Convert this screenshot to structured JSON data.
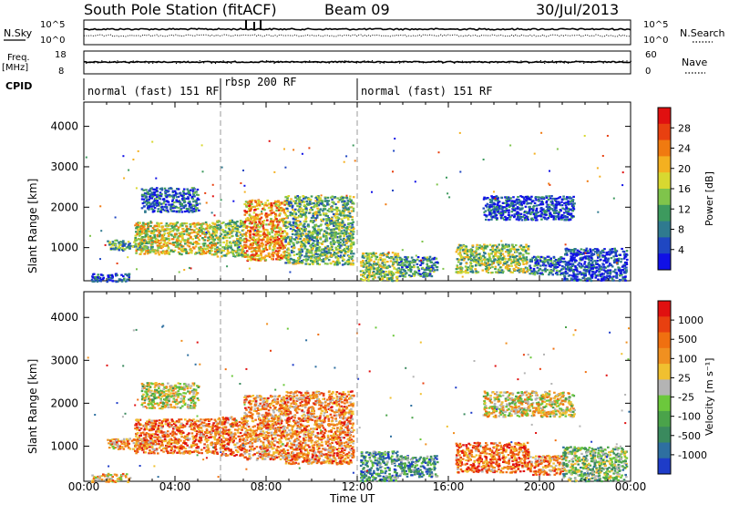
{
  "header": {
    "station": "South Pole Station (fitACF)",
    "beam": "Beam 09",
    "date": "30/Jul/2013"
  },
  "top_panels": {
    "nsky_label": "N.Sky",
    "nsearch_label": "N.Search",
    "freq_label_1": "Freq.",
    "freq_label_2": "[MHz]",
    "nave_label": "Nave",
    "cpid_label": "CPID",
    "noise_ticks_left": [
      "10^5",
      "10^0"
    ],
    "noise_ticks_right": [
      "10^5",
      "10^0"
    ],
    "freq_ticks": [
      "18",
      "8"
    ],
    "nave_ticks": [
      "60",
      "0"
    ]
  },
  "cpid_segments": [
    {
      "label": "normal (fast) 151 RF",
      "start_h": 0,
      "end_h": 6
    },
    {
      "label": "rbsp 200 RF",
      "start_h": 6,
      "end_h": 12
    },
    {
      "label": "normal (fast) 151 RF",
      "start_h": 12,
      "end_h": 24
    }
  ],
  "chart_data": [
    {
      "type": "heatmap",
      "name": "power",
      "ylabel": "Slant Range [km]",
      "xlabel": "Time UT",
      "xlim": [
        0,
        24
      ],
      "ylim": [
        180,
        4600
      ],
      "x_ticks": [
        "00:00",
        "04:00",
        "08:00",
        "12:00",
        "16:00",
        "20:00",
        "00:00"
      ],
      "y_ticks": [
        1000,
        2000,
        3000,
        4000
      ],
      "colorbar": {
        "label": "Power [dB]",
        "ticks": [
          "28",
          "24",
          "20",
          "16",
          "12",
          "8",
          "4"
        ],
        "colors": [
          "#1010e6",
          "#1f47c2",
          "#2f7a8f",
          "#3d9a5e",
          "#7fc44b",
          "#d8d830",
          "#f4b020",
          "#f07a10",
          "#e84010",
          "#e01010"
        ]
      },
      "regions": [
        {
          "t0": 0.3,
          "t1": 2.0,
          "r0": 180,
          "r1": 380,
          "level": 0.15
        },
        {
          "t0": 1.0,
          "t1": 3.0,
          "r0": 950,
          "r1": 1200,
          "level": 0.35
        },
        {
          "t0": 2.2,
          "t1": 5.8,
          "r0": 850,
          "r1": 1650,
          "level": 0.55
        },
        {
          "t0": 2.5,
          "t1": 5.0,
          "r0": 1900,
          "r1": 2500,
          "level": 0.2
        },
        {
          "t0": 5.8,
          "t1": 7.0,
          "r0": 800,
          "r1": 1700,
          "level": 0.45
        },
        {
          "t0": 7.0,
          "t1": 8.8,
          "r0": 700,
          "r1": 2200,
          "level": 0.7
        },
        {
          "t0": 8.8,
          "t1": 11.8,
          "r0": 600,
          "r1": 2300,
          "level": 0.4
        },
        {
          "t0": 12.1,
          "t1": 13.8,
          "r0": 200,
          "r1": 900,
          "level": 0.45
        },
        {
          "t0": 13.8,
          "t1": 15.5,
          "r0": 300,
          "r1": 800,
          "level": 0.3
        },
        {
          "t0": 16.3,
          "t1": 19.5,
          "r0": 400,
          "r1": 1100,
          "level": 0.45
        },
        {
          "t0": 19.5,
          "t1": 21.0,
          "r0": 350,
          "r1": 800,
          "level": 0.25
        },
        {
          "t0": 21.0,
          "t1": 23.8,
          "r0": 200,
          "r1": 1000,
          "level": 0.12
        },
        {
          "t0": 17.5,
          "t1": 21.5,
          "r0": 1700,
          "r1": 2300,
          "level": 0.15
        }
      ]
    },
    {
      "type": "heatmap",
      "name": "velocity",
      "ylabel": "Slant Range [km]",
      "xlabel": "Time UT",
      "xlim": [
        0,
        24
      ],
      "ylim": [
        180,
        4600
      ],
      "x_ticks": [
        "00:00",
        "04:00",
        "08:00",
        "12:00",
        "16:00",
        "20:00",
        "00:00"
      ],
      "y_ticks": [
        1000,
        2000,
        3000,
        4000
      ],
      "colorbar": {
        "label": "Velocity [m s⁻¹]",
        "ticks": [
          "1000",
          "500",
          "100",
          "25",
          "-25",
          "-100",
          "-500",
          "-1000"
        ],
        "colors": [
          "#1e3cc8",
          "#2e6fa0",
          "#3a8a5e",
          "#4aa34a",
          "#6cc83c",
          "#b4b4b4",
          "#f0c030",
          "#f09020",
          "#f07010",
          "#e84010",
          "#e01010"
        ]
      },
      "regions": [
        {
          "t0": 0.3,
          "t1": 2.0,
          "r0": 180,
          "r1": 380,
          "level": 0.6
        },
        {
          "t0": 1.0,
          "t1": 3.0,
          "r0": 950,
          "r1": 1200,
          "level": 0.65
        },
        {
          "t0": 2.2,
          "t1": 5.8,
          "r0": 850,
          "r1": 1650,
          "level": 0.75
        },
        {
          "t0": 2.5,
          "t1": 5.0,
          "r0": 1900,
          "r1": 2500,
          "level": 0.5
        },
        {
          "t0": 5.8,
          "t1": 7.0,
          "r0": 800,
          "r1": 1700,
          "level": 0.75
        },
        {
          "t0": 7.0,
          "t1": 8.8,
          "r0": 700,
          "r1": 2200,
          "level": 0.7
        },
        {
          "t0": 8.8,
          "t1": 11.8,
          "r0": 600,
          "r1": 2300,
          "level": 0.72
        },
        {
          "t0": 12.1,
          "t1": 13.8,
          "r0": 200,
          "r1": 900,
          "level": 0.25
        },
        {
          "t0": 13.8,
          "t1": 15.5,
          "r0": 300,
          "r1": 800,
          "level": 0.28
        },
        {
          "t0": 16.3,
          "t1": 19.5,
          "r0": 400,
          "r1": 1100,
          "level": 0.78
        },
        {
          "t0": 19.5,
          "t1": 21.0,
          "r0": 350,
          "r1": 800,
          "level": 0.72
        },
        {
          "t0": 21.0,
          "t1": 23.8,
          "r0": 200,
          "r1": 1000,
          "level": 0.4
        },
        {
          "t0": 17.5,
          "t1": 21.5,
          "r0": 1700,
          "r1": 2300,
          "level": 0.55
        }
      ]
    }
  ]
}
